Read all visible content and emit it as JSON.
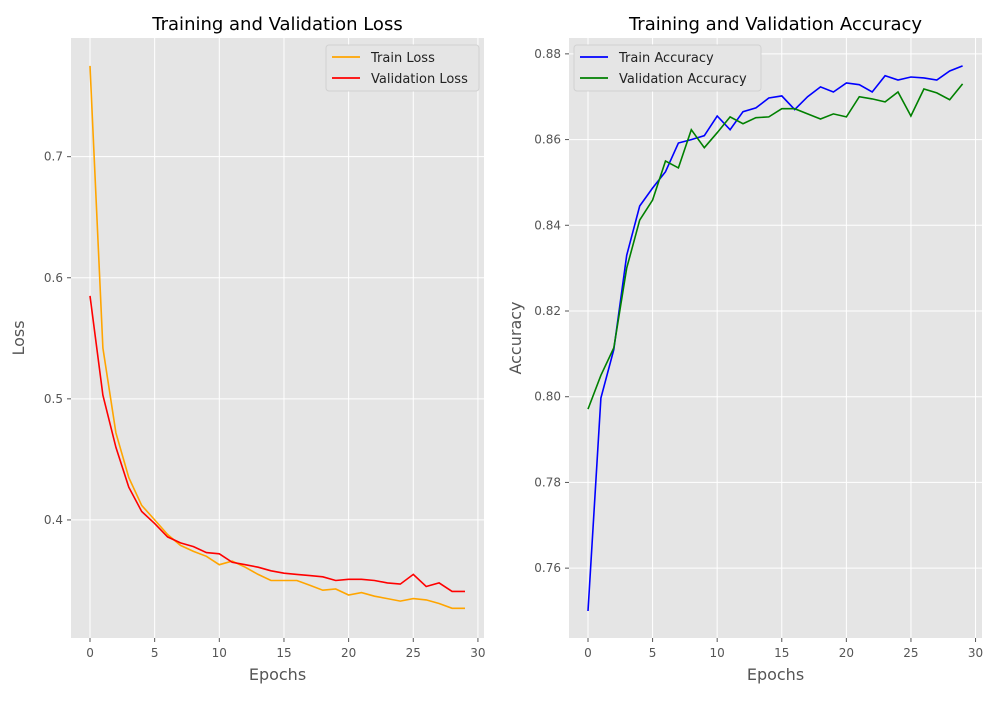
{
  "chart_data": [
    {
      "type": "line",
      "title": "Training and Validation Loss",
      "xlabel": "Epochs",
      "ylabel": "Loss",
      "xlim": [
        -1.47,
        30.47
      ],
      "ylim": [
        0.3025,
        0.798
      ],
      "xticks": [
        0,
        5,
        10,
        15,
        20,
        25,
        30
      ],
      "yticks": [
        0.4,
        0.5,
        0.6,
        0.7
      ],
      "ytick_labels": [
        "0.4",
        "0.5",
        "0.6",
        "0.7"
      ],
      "grid": true,
      "legend": "top-right",
      "x": [
        0,
        1,
        2,
        3,
        4,
        5,
        6,
        7,
        8,
        9,
        10,
        11,
        12,
        13,
        14,
        15,
        16,
        17,
        18,
        19,
        20,
        21,
        22,
        23,
        24,
        25,
        26,
        27,
        28,
        29
      ],
      "series": [
        {
          "name": "Train Loss",
          "color": "#ffa500",
          "values": [
            0.775,
            0.542,
            0.472,
            0.435,
            0.412,
            0.4,
            0.388,
            0.379,
            0.374,
            0.37,
            0.363,
            0.366,
            0.361,
            0.355,
            0.35,
            0.35,
            0.35,
            0.346,
            0.342,
            0.343,
            0.338,
            0.34,
            0.337,
            0.335,
            0.333,
            0.335,
            0.334,
            0.331,
            0.327,
            0.327
          ]
        },
        {
          "name": "Validation Loss",
          "color": "#ff0000",
          "values": [
            0.585,
            0.503,
            0.46,
            0.427,
            0.407,
            0.397,
            0.386,
            0.381,
            0.378,
            0.373,
            0.372,
            0.365,
            0.363,
            0.361,
            0.358,
            0.356,
            0.355,
            0.354,
            0.353,
            0.35,
            0.351,
            0.351,
            0.35,
            0.348,
            0.347,
            0.355,
            0.345,
            0.348,
            0.341,
            0.341
          ]
        }
      ]
    },
    {
      "type": "line",
      "title": "Training and Validation Accuracy",
      "xlabel": "Epochs",
      "ylabel": "Accuracy",
      "xlim": [
        -1.47,
        30.5
      ],
      "ylim": [
        0.7437,
        0.8837
      ],
      "xticks": [
        0,
        5,
        10,
        15,
        20,
        25,
        30
      ],
      "yticks": [
        0.76,
        0.78,
        0.8,
        0.82,
        0.84,
        0.86,
        0.88
      ],
      "ytick_labels": [
        "0.76",
        "0.78",
        "0.80",
        "0.82",
        "0.84",
        "0.86",
        "0.88"
      ],
      "grid": true,
      "legend": "top-left",
      "x": [
        0,
        1,
        2,
        3,
        4,
        5,
        6,
        7,
        8,
        9,
        10,
        11,
        12,
        13,
        14,
        15,
        16,
        17,
        18,
        19,
        20,
        21,
        22,
        23,
        24,
        25,
        26,
        27,
        28,
        29
      ],
      "series": [
        {
          "name": "Train Accuracy",
          "color": "#0000ff",
          "values": [
            0.75,
            0.7997,
            0.811,
            0.833,
            0.8445,
            0.8487,
            0.8525,
            0.8592,
            0.86,
            0.8609,
            0.8655,
            0.8623,
            0.8665,
            0.8674,
            0.8697,
            0.8702,
            0.867,
            0.87,
            0.8723,
            0.8711,
            0.8732,
            0.8728,
            0.8711,
            0.8749,
            0.8739,
            0.8746,
            0.8744,
            0.8739,
            0.876,
            0.8772
          ]
        },
        {
          "name": "Validation Accuracy",
          "color": "#008000",
          "values": [
            0.7971,
            0.805,
            0.8114,
            0.83,
            0.8412,
            0.8459,
            0.855,
            0.8534,
            0.8623,
            0.8581,
            0.8616,
            0.8653,
            0.8637,
            0.8651,
            0.8653,
            0.8672,
            0.8672,
            0.866,
            0.8648,
            0.866,
            0.8653,
            0.87,
            0.8695,
            0.8688,
            0.8711,
            0.8655,
            0.8718,
            0.8709,
            0.8693,
            0.873
          ]
        }
      ]
    }
  ]
}
